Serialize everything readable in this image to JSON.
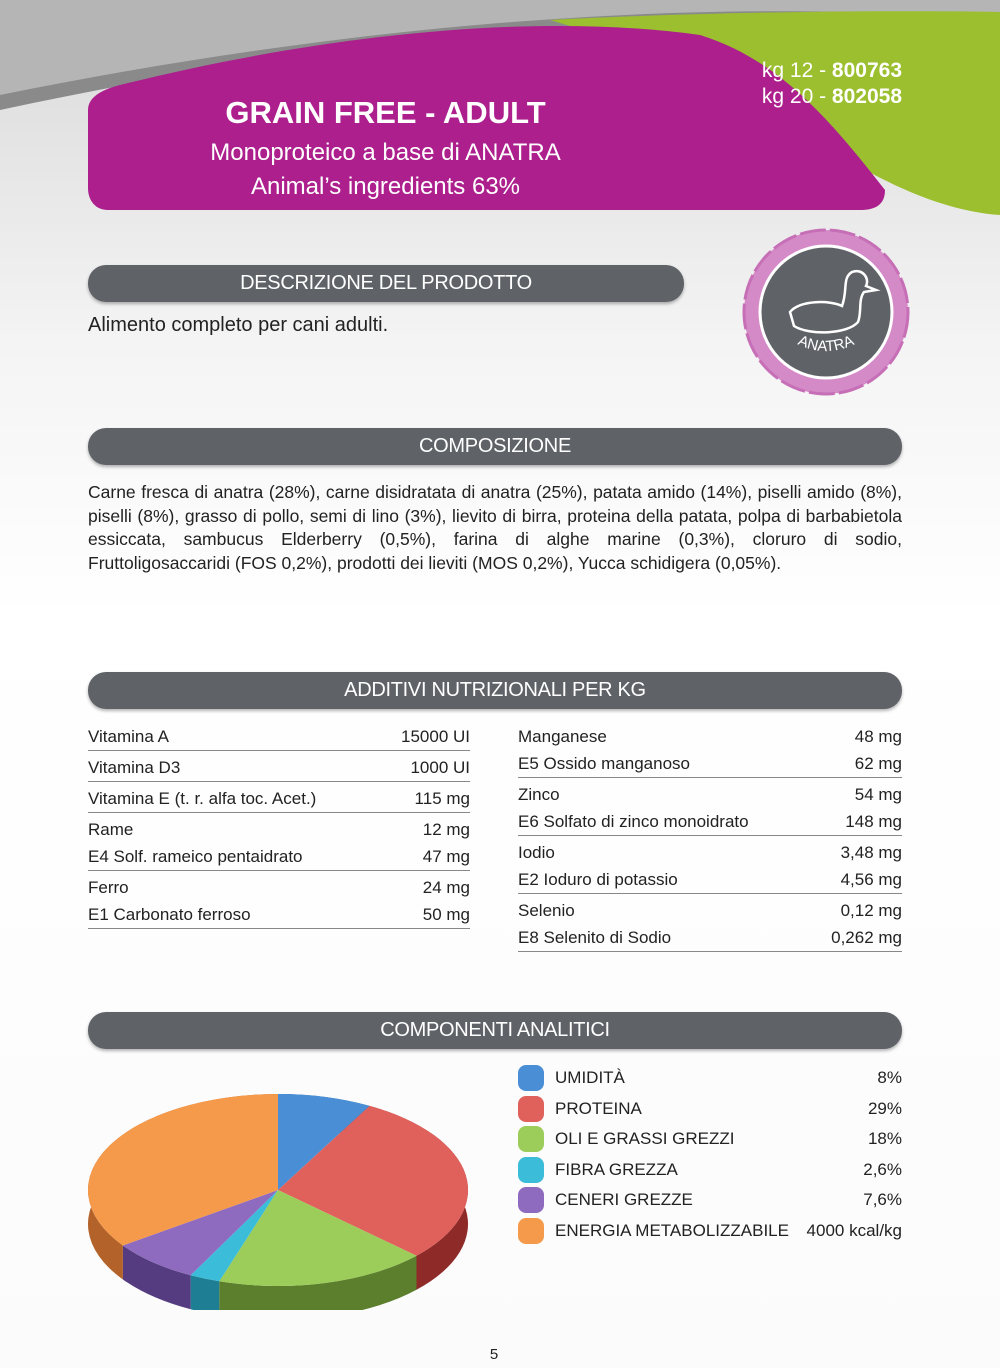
{
  "header": {
    "title": "GRAIN FREE - ADULT",
    "subtitle": [
      "Monoproteico a base di ANATRA",
      "Animal’s ingredients 63%"
    ],
    "codes": [
      {
        "size": "kg 12 - ",
        "code": "800763"
      },
      {
        "size": "kg 20 - ",
        "code": "802058"
      }
    ]
  },
  "badge": {
    "label": "ANATRA"
  },
  "description": {
    "heading": "DESCRIZIONE DEL PRODOTTO",
    "text": "Alimento completo per cani adulti."
  },
  "composition": {
    "heading": "COMPOSIZIONE",
    "text": "Carne fresca di anatra (28%), carne disidratata di anatra (25%), patata amido (14%), piselli amido (8%), piselli (8%), grasso di pollo, semi di lino (3%), lievito di birra, proteina della patata, polpa di barbabietola essiccata, sambucus Elderberry (0,5%), farina di alghe marine (0,3%), cloruro di sodio, Fruttoligosaccaridi (FOS 0,2%), prodotti dei lieviti (MOS 0,2%), Yucca schidigera (0,05%)."
  },
  "additives": {
    "heading": "ADDITIVI NUTRIZIONALI PER KG",
    "left": [
      [
        [
          "Vitamina A",
          "15000 UI"
        ]
      ],
      [
        [
          "Vitamina D3",
          "1000 UI"
        ]
      ],
      [
        [
          "Vitamina E (t. r. alfa toc. Acet.)",
          "115 mg"
        ]
      ],
      [
        [
          "Rame",
          "12 mg"
        ],
        [
          "E4 Solf. rameico pentaidrato",
          "47 mg"
        ]
      ],
      [
        [
          "Ferro",
          "24 mg"
        ],
        [
          "E1 Carbonato ferroso",
          "50 mg"
        ]
      ]
    ],
    "right": [
      [
        [
          "Manganese",
          "48 mg"
        ],
        [
          "E5 Ossido manganoso",
          "62 mg"
        ]
      ],
      [
        [
          "Zinco",
          "54 mg"
        ],
        [
          "E6 Solfato di zinco monoidrato",
          "148 mg"
        ]
      ],
      [
        [
          "Iodio",
          "3,48 mg"
        ],
        [
          "E2 Ioduro di potassio",
          "4,56 mg"
        ]
      ],
      [
        [
          "Selenio",
          "0,12 mg"
        ],
        [
          "E8 Selenito di Sodio",
          "0,262 mg"
        ]
      ]
    ]
  },
  "analytics": {
    "heading": "COMPONENTI ANALITICI",
    "rows": [
      [
        "UMIDITÀ",
        "8%"
      ],
      [
        "PROTEINA",
        "29%"
      ],
      [
        "OLI E GRASSI GREZZI",
        "18%"
      ],
      [
        "FIBRA GREZZA",
        "2,6%"
      ],
      [
        "CENERI GREZZE",
        "7,6%"
      ],
      [
        "ENERGIA METABOLIZZABILE",
        "4000 kcal/kg"
      ]
    ]
  },
  "chart_data": {
    "type": "pie",
    "values": [
      8,
      29,
      18,
      2.6,
      7.6,
      34.8
    ],
    "colors": [
      "#4a8fd6",
      "#e0605c",
      "#9ccc5a",
      "#3bbcd8",
      "#8e6bbf",
      "#f59a4a"
    ],
    "side_colors": [
      "#2c5f94",
      "#8e2a28",
      "#5b7f2c",
      "#1e7f94",
      "#553c80",
      "#b3622a"
    ]
  },
  "footer": {
    "page": "5"
  }
}
